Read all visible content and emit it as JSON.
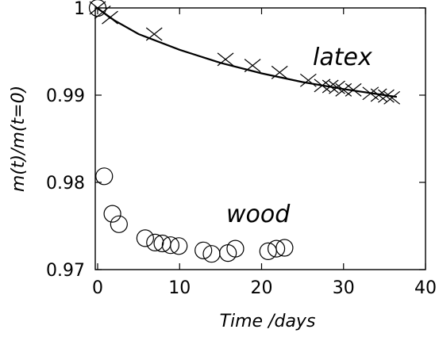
{
  "chart_data": {
    "type": "scatter",
    "title": "",
    "xlabel": "Time /days",
    "ylabel": "m(t)/m(t=0)",
    "xlim": [
      0,
      40
    ],
    "ylim": [
      0.97,
      1.0
    ],
    "x_ticks": [
      0,
      10,
      20,
      30,
      40
    ],
    "x_tick_labels": [
      "0",
      "10",
      "20",
      "30",
      "40"
    ],
    "y_ticks": [
      0.97,
      0.98,
      0.99,
      1.0
    ],
    "y_tick_labels": [
      "0.97",
      "0.98",
      "0.99",
      "1"
    ],
    "grid": false,
    "series": [
      {
        "name": "latex",
        "marker": "cross",
        "x": [
          0,
          0.6,
          1.5,
          6.9,
          15.6,
          18.9,
          22.2,
          25.7,
          27.4,
          28.4,
          29.2,
          30.0,
          31.2,
          33.3,
          34.3,
          35.2,
          35.9
        ],
        "y": [
          1.0,
          0.9995,
          0.9989,
          0.997,
          0.9941,
          0.9934,
          0.9926,
          0.9917,
          0.9911,
          0.991,
          0.9909,
          0.9906,
          0.9906,
          0.9902,
          0.99,
          0.9899,
          0.9897
        ],
        "fit": {
          "x": [
            0,
            2,
            5,
            10,
            15,
            20,
            25,
            30,
            35,
            36.5
          ],
          "y": [
            0.99995,
            0.9986,
            0.997,
            0.9952,
            0.9937,
            0.9925,
            0.9915,
            0.9907,
            0.99,
            0.9898
          ]
        }
      },
      {
        "name": "wood",
        "marker": "circle",
        "x": [
          0,
          0.8,
          1.8,
          2.6,
          5.8,
          7.0,
          7.9,
          8.9,
          9.9,
          12.9,
          13.9,
          15.9,
          16.8,
          20.8,
          21.8,
          22.8
        ],
        "y": [
          1.0,
          0.9807,
          0.9764,
          0.9752,
          0.9736,
          0.9731,
          0.973,
          0.9728,
          0.9727,
          0.9722,
          0.9718,
          0.9719,
          0.9724,
          0.9721,
          0.9724,
          0.9725
        ]
      }
    ]
  }
}
